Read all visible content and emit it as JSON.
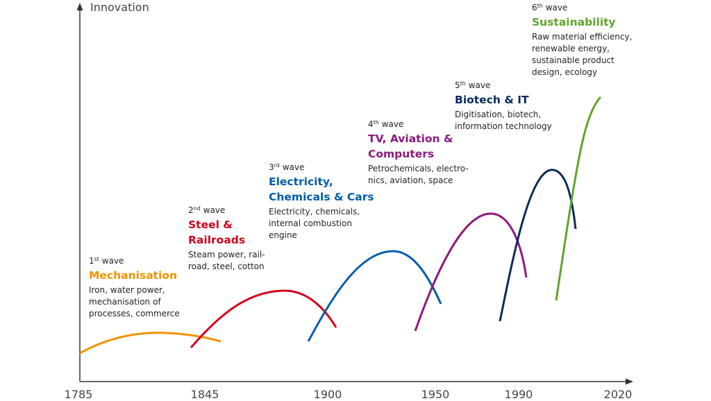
{
  "axis": {
    "y_label": "Innovation",
    "ticks": [
      "1785",
      "1845",
      "1900",
      "1950",
      "1990",
      "2020"
    ]
  },
  "waves": [
    {
      "number": "1",
      "ordinal_suffix": "st",
      "wave_word": "wave",
      "title_lines": [
        "Mechanisation"
      ],
      "desc_lines": [
        "Iron, water power,",
        "mechanisation of",
        "processes, commerce"
      ],
      "color": "#f39200"
    },
    {
      "number": "2",
      "ordinal_suffix": "nd",
      "wave_word": "wave",
      "title_lines": [
        "Steel &",
        "Railroads"
      ],
      "desc_lines": [
        "Steam power, rail-",
        "road, steel, cotton"
      ],
      "color": "#d0021b"
    },
    {
      "number": "3",
      "ordinal_suffix": "rd",
      "wave_word": "wave",
      "title_lines": [
        "Electricity,",
        "Chemicals & Cars"
      ],
      "desc_lines": [
        "Electricity, chemicals,",
        "internal combustion",
        "engine"
      ],
      "color": "#005ca9"
    },
    {
      "number": "4",
      "ordinal_suffix": "th",
      "wave_word": "wave",
      "title_lines": [
        "TV, Aviation &",
        "Computers"
      ],
      "desc_lines": [
        "Petrochemicals, electro-",
        "nics, aviation, space"
      ],
      "color": "#8b1a7e"
    },
    {
      "number": "5",
      "ordinal_suffix": "th",
      "wave_word": "wave",
      "title_lines": [
        "Biotech & IT"
      ],
      "desc_lines": [
        "Digitisation, biotech,",
        "information technology"
      ],
      "color": "#0b2a5b"
    },
    {
      "number": "6",
      "ordinal_suffix": "th",
      "wave_word": "wave",
      "title_lines": [
        "Sustainability"
      ],
      "desc_lines": [
        "Raw material efficiency,",
        "renewable energy,",
        "sustainable product",
        "design, ecology"
      ],
      "color": "#5fa52a"
    }
  ]
}
